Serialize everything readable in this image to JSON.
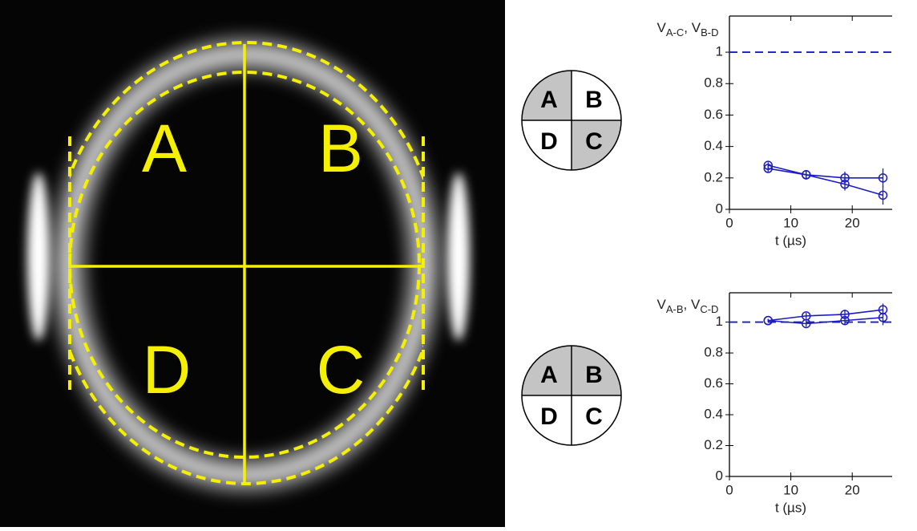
{
  "image": {
    "quadrant_labels": [
      "A",
      "B",
      "D",
      "C"
    ]
  },
  "diagrams": [
    {
      "labels": [
        "A",
        "B",
        "D",
        "C"
      ],
      "shaded": [
        0,
        3
      ]
    },
    {
      "labels": [
        "A",
        "B",
        "D",
        "C"
      ],
      "shaded": [
        0,
        1
      ]
    }
  ],
  "chart_data": [
    {
      "type": "line",
      "ylabel_parts": [
        "V",
        "A-C",
        ", V",
        "B-D"
      ],
      "xlabel": "t (µs)",
      "x": [
        6.3,
        12.5,
        18.8,
        25
      ],
      "series": [
        {
          "color": "#1c1cc0",
          "values": [
            0.28,
            0.22,
            0.16,
            0.09
          ],
          "errors": [
            0.02,
            0.02,
            0.04,
            0.06
          ]
        },
        {
          "color": "#1c1cc0",
          "values": [
            0.26,
            0.22,
            0.2,
            0.2
          ],
          "errors": [
            0.02,
            0.03,
            0.04,
            0.06
          ]
        }
      ],
      "xlim": [
        0,
        26.5
      ],
      "ylim": [
        0,
        1.23
      ],
      "xticks": [
        0,
        10,
        20
      ],
      "yticks": [
        0,
        0.2,
        0.4,
        0.6,
        0.8,
        1
      ],
      "reference_line": {
        "value": 1,
        "style": "dashed",
        "color": "#1c1cc0"
      }
    },
    {
      "type": "line",
      "ylabel_parts": [
        "V",
        "A-B",
        ", V",
        "C-D"
      ],
      "xlabel": "t (µs)",
      "x": [
        6.3,
        12.5,
        18.8,
        25
      ],
      "series": [
        {
          "color": "#1c1cc0",
          "values": [
            1.01,
            1.04,
            1.05,
            1.08
          ],
          "errors": [
            0.01,
            0.02,
            0.03,
            0.04
          ]
        },
        {
          "color": "#1c1cc0",
          "values": [
            1.01,
            0.99,
            1.01,
            1.03
          ],
          "errors": [
            0.01,
            0.02,
            0.03,
            0.05
          ]
        }
      ],
      "xlim": [
        0,
        26.5
      ],
      "ylim": [
        0,
        1.19
      ],
      "xticks": [
        0,
        10,
        20
      ],
      "yticks": [
        0,
        0.2,
        0.4,
        0.6,
        0.8,
        1
      ],
      "reference_line": {
        "value": 1,
        "style": "dashed",
        "color": "#1c1cc0"
      }
    }
  ]
}
